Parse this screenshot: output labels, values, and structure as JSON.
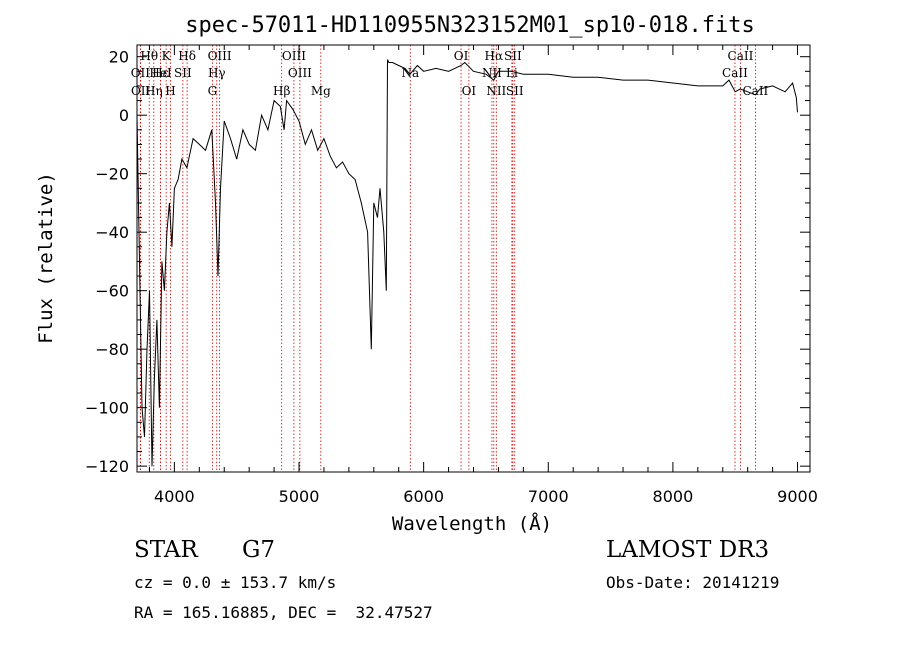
{
  "chart_data": {
    "type": "line",
    "title": "spec-57011-HD110955N323152M01_sp10-018.fits",
    "xlabel": "Wavelength (Å)",
    "ylabel": "Flux (relative)",
    "xlim": [
      3700,
      9100
    ],
    "ylim": [
      -122,
      24
    ],
    "xticks": [
      4000,
      5000,
      6000,
      7000,
      8000,
      9000
    ],
    "yticks": [
      20,
      0,
      -20,
      -40,
      -60,
      -80,
      -100,
      -120
    ],
    "grid": false,
    "series": [
      {
        "name": "flux",
        "color": "#000000",
        "x": [
          3700,
          3720,
          3740,
          3760,
          3780,
          3800,
          3820,
          3840,
          3860,
          3880,
          3900,
          3920,
          3940,
          3960,
          3980,
          4000,
          4030,
          4060,
          4100,
          4150,
          4200,
          4250,
          4300,
          4330,
          4350,
          4370,
          4400,
          4450,
          4500,
          4550,
          4600,
          4650,
          4700,
          4750,
          4800,
          4850,
          4880,
          4900,
          4950,
          5000,
          5050,
          5100,
          5150,
          5200,
          5250,
          5300,
          5350,
          5400,
          5450,
          5500,
          5550,
          5580,
          5600,
          5630,
          5650,
          5680,
          5700,
          5710,
          5720,
          5750,
          5800,
          5850,
          5890,
          5950,
          6000,
          6100,
          6200,
          6300,
          6330,
          6400,
          6500,
          6563,
          6600,
          6700,
          6800,
          6900,
          7000,
          7200,
          7400,
          7600,
          7800,
          8000,
          8200,
          8400,
          8450,
          8500,
          8540,
          8600,
          8662,
          8700,
          8800,
          8900,
          8960,
          8990,
          9000
        ],
        "y": [
          0,
          -50,
          -100,
          -110,
          -80,
          -60,
          -120,
          -90,
          -70,
          -100,
          -50,
          -60,
          -40,
          -30,
          -45,
          -25,
          -22,
          -15,
          -18,
          -8,
          -10,
          -12,
          -5,
          -30,
          -55,
          -25,
          -2,
          -8,
          -15,
          -5,
          -10,
          -12,
          0,
          -5,
          5,
          3,
          -5,
          5,
          2,
          -2,
          -10,
          -5,
          -12,
          -8,
          -14,
          -18,
          -16,
          -20,
          -22,
          -30,
          -40,
          -80,
          -30,
          -35,
          -25,
          -40,
          -60,
          19,
          18,
          18,
          17,
          16,
          14,
          17,
          15,
          16,
          15,
          17,
          18,
          15,
          14,
          12,
          15,
          15,
          14,
          14,
          14,
          13,
          13,
          12,
          12,
          11,
          10,
          10,
          12,
          8,
          9,
          8,
          7,
          9,
          10,
          8,
          11,
          6,
          1
        ]
      }
    ],
    "lines": [
      {
        "label": "Hθ",
        "x": 3798,
        "row": 0
      },
      {
        "label": "OII",
        "x": 3727,
        "row": 1
      },
      {
        "label": "OII",
        "x": 3729,
        "row": 2
      },
      {
        "label": "Hε",
        "x": 3889,
        "row": 1
      },
      {
        "label": "Hη",
        "x": 3835,
        "row": 2
      },
      {
        "label": "K",
        "x": 3934,
        "row": 0
      },
      {
        "label": "HeI",
        "x": 3889,
        "row": 1
      },
      {
        "label": "H",
        "x": 3969,
        "row": 2
      },
      {
        "label": "Hδ",
        "x": 4102,
        "row": 0
      },
      {
        "label": "SII",
        "x": 4068,
        "row": 1
      },
      {
        "label": "OIII",
        "x": 4363,
        "row": 0
      },
      {
        "label": "Hγ",
        "x": 4340,
        "row": 1
      },
      {
        "label": "G",
        "x": 4305,
        "row": 2
      },
      {
        "label": "Hβ",
        "x": 4861,
        "row": 2
      },
      {
        "label": "OIII",
        "x": 4959,
        "row": 0
      },
      {
        "label": "OIII",
        "x": 5007,
        "row": 1
      },
      {
        "label": "Mg",
        "x": 5175,
        "row": 2
      },
      {
        "label": "Na",
        "x": 5893,
        "row": 1
      },
      {
        "label": "OI",
        "x": 6300,
        "row": 0
      },
      {
        "label": "OI",
        "x": 6363,
        "row": 2
      },
      {
        "label": "Hα",
        "x": 6563,
        "row": 0
      },
      {
        "label": "NII",
        "x": 6548,
        "row": 1
      },
      {
        "label": "NII",
        "x": 6583,
        "row": 2
      },
      {
        "label": "SII",
        "x": 6716,
        "row": 0
      },
      {
        "label": "Li",
        "x": 6708,
        "row": 1
      },
      {
        "label": "SII",
        "x": 6731,
        "row": 2
      },
      {
        "label": "CaII",
        "x": 8542,
        "row": 0
      },
      {
        "label": "CaII",
        "x": 8498,
        "row": 1
      },
      {
        "label": "CaII",
        "x": 8662,
        "row": 2
      }
    ]
  },
  "info": {
    "object_class": "STAR",
    "subclass": "G7",
    "survey": "LAMOST DR3",
    "cz": "cz = 0.0 ± 153.7 km/s",
    "obs_date": "Obs-Date: 20141219",
    "coords": "RA = 165.16885, DEC =  32.47527"
  },
  "colors": {
    "line_marker": "#cc0000",
    "spectrum": "#000000"
  }
}
